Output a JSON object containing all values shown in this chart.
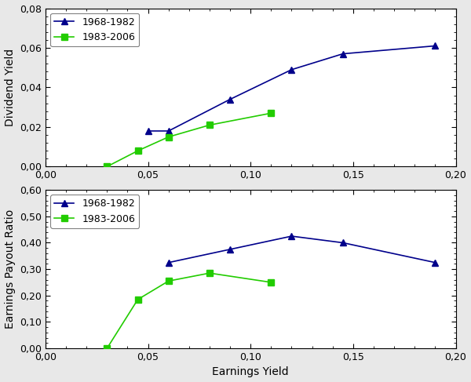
{
  "top_chart": {
    "series_1968": {
      "x": [
        0.05,
        0.06,
        0.09,
        0.12,
        0.145,
        0.19
      ],
      "y": [
        0.018,
        0.018,
        0.034,
        0.049,
        0.057,
        0.061
      ],
      "color": "#00008B",
      "label": "1968-1982",
      "marker": "^"
    },
    "series_1983": {
      "x": [
        0.03,
        0.045,
        0.06,
        0.08,
        0.11
      ],
      "y": [
        0.0,
        0.008,
        0.015,
        0.021,
        0.027
      ],
      "color": "#22CC00",
      "label": "1983-2006",
      "marker": "s"
    },
    "ylabel": "Dividend Yield",
    "ylim": [
      0.0,
      0.08
    ],
    "yticks": [
      0.0,
      0.02,
      0.04,
      0.06,
      0.08
    ]
  },
  "bottom_chart": {
    "series_1968": {
      "x": [
        0.06,
        0.09,
        0.12,
        0.145,
        0.19
      ],
      "y": [
        0.325,
        0.375,
        0.425,
        0.4,
        0.325
      ],
      "color": "#00008B",
      "label": "1968-1982",
      "marker": "^"
    },
    "series_1983": {
      "x": [
        0.03,
        0.045,
        0.06,
        0.08,
        0.11
      ],
      "y": [
        0.0,
        0.185,
        0.255,
        0.285,
        0.25
      ],
      "color": "#22CC00",
      "label": "1983-2006",
      "marker": "s"
    },
    "ylabel": "Earnings Payout Ratio",
    "xlabel": "Earnings Yield",
    "ylim": [
      0.0,
      0.6
    ],
    "yticks": [
      0.0,
      0.1,
      0.2,
      0.3,
      0.4,
      0.5,
      0.6
    ]
  },
  "xlim": [
    0.0,
    0.2
  ],
  "xticks": [
    0.0,
    0.05,
    0.1,
    0.15,
    0.2
  ],
  "linewidth": 1.2,
  "markersize": 6,
  "markerfacecolor_1968": "#00008B",
  "markerfacecolor_1983": "#22CC00",
  "legend_fontsize": 9,
  "axis_fontsize": 10,
  "tick_fontsize": 9,
  "background_color": "#ffffff",
  "figure_background": "#e8e8e8"
}
